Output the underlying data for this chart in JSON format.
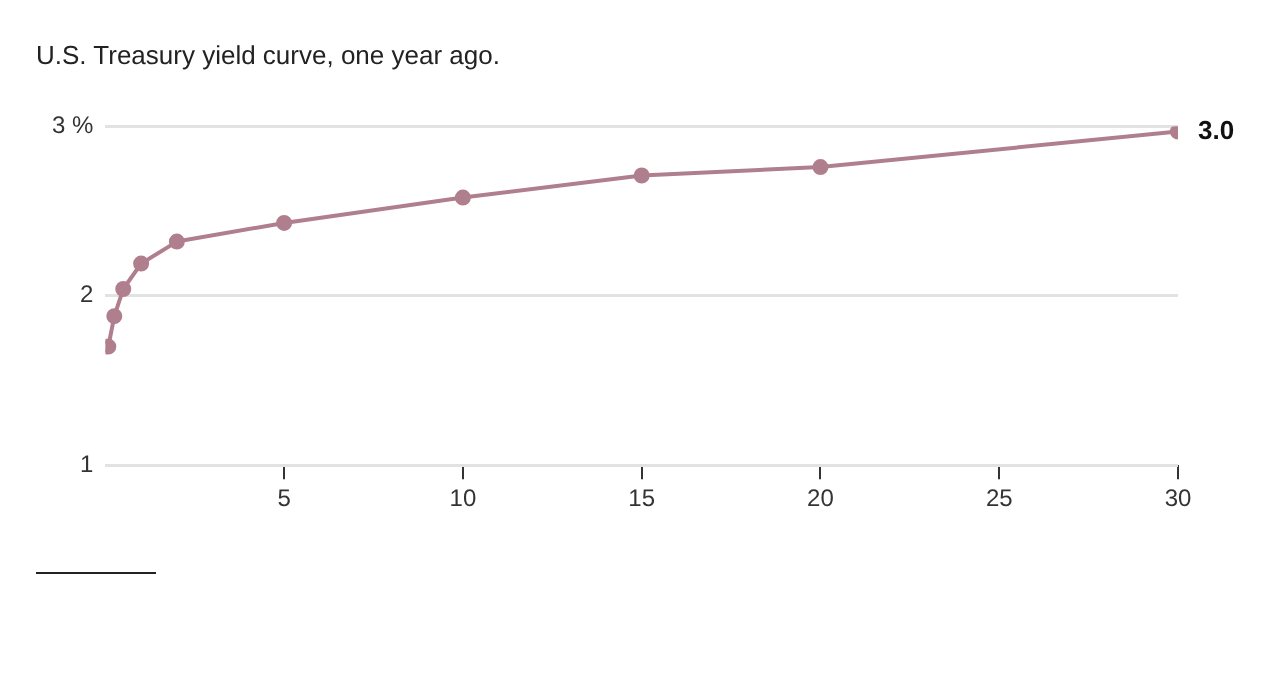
{
  "chart_data": {
    "type": "line",
    "title": "U.S. Treasury yield curve, one year ago.",
    "x": [
      0.083,
      0.25,
      0.5,
      1,
      2,
      5,
      10,
      15,
      20,
      30
    ],
    "series": [
      {
        "color": "#b07f8e",
        "values": [
          1.7,
          1.88,
          2.04,
          2.19,
          2.32,
          2.43,
          2.58,
          2.71,
          2.76,
          2.97
        ],
        "value_labels": [
          null,
          null,
          null,
          null,
          null,
          null,
          null,
          null,
          null,
          "3.0"
        ]
      }
    ],
    "xlim": [
      0,
      30
    ],
    "xticks": [
      5,
      10,
      15,
      20,
      25,
      30
    ],
    "ylim": [
      1,
      3
    ],
    "yticks": [
      1,
      2,
      {
        "value": 3,
        "label": "3 %"
      }
    ],
    "grid": "y",
    "legend": false,
    "marker": "circle",
    "line_style": "solid"
  }
}
